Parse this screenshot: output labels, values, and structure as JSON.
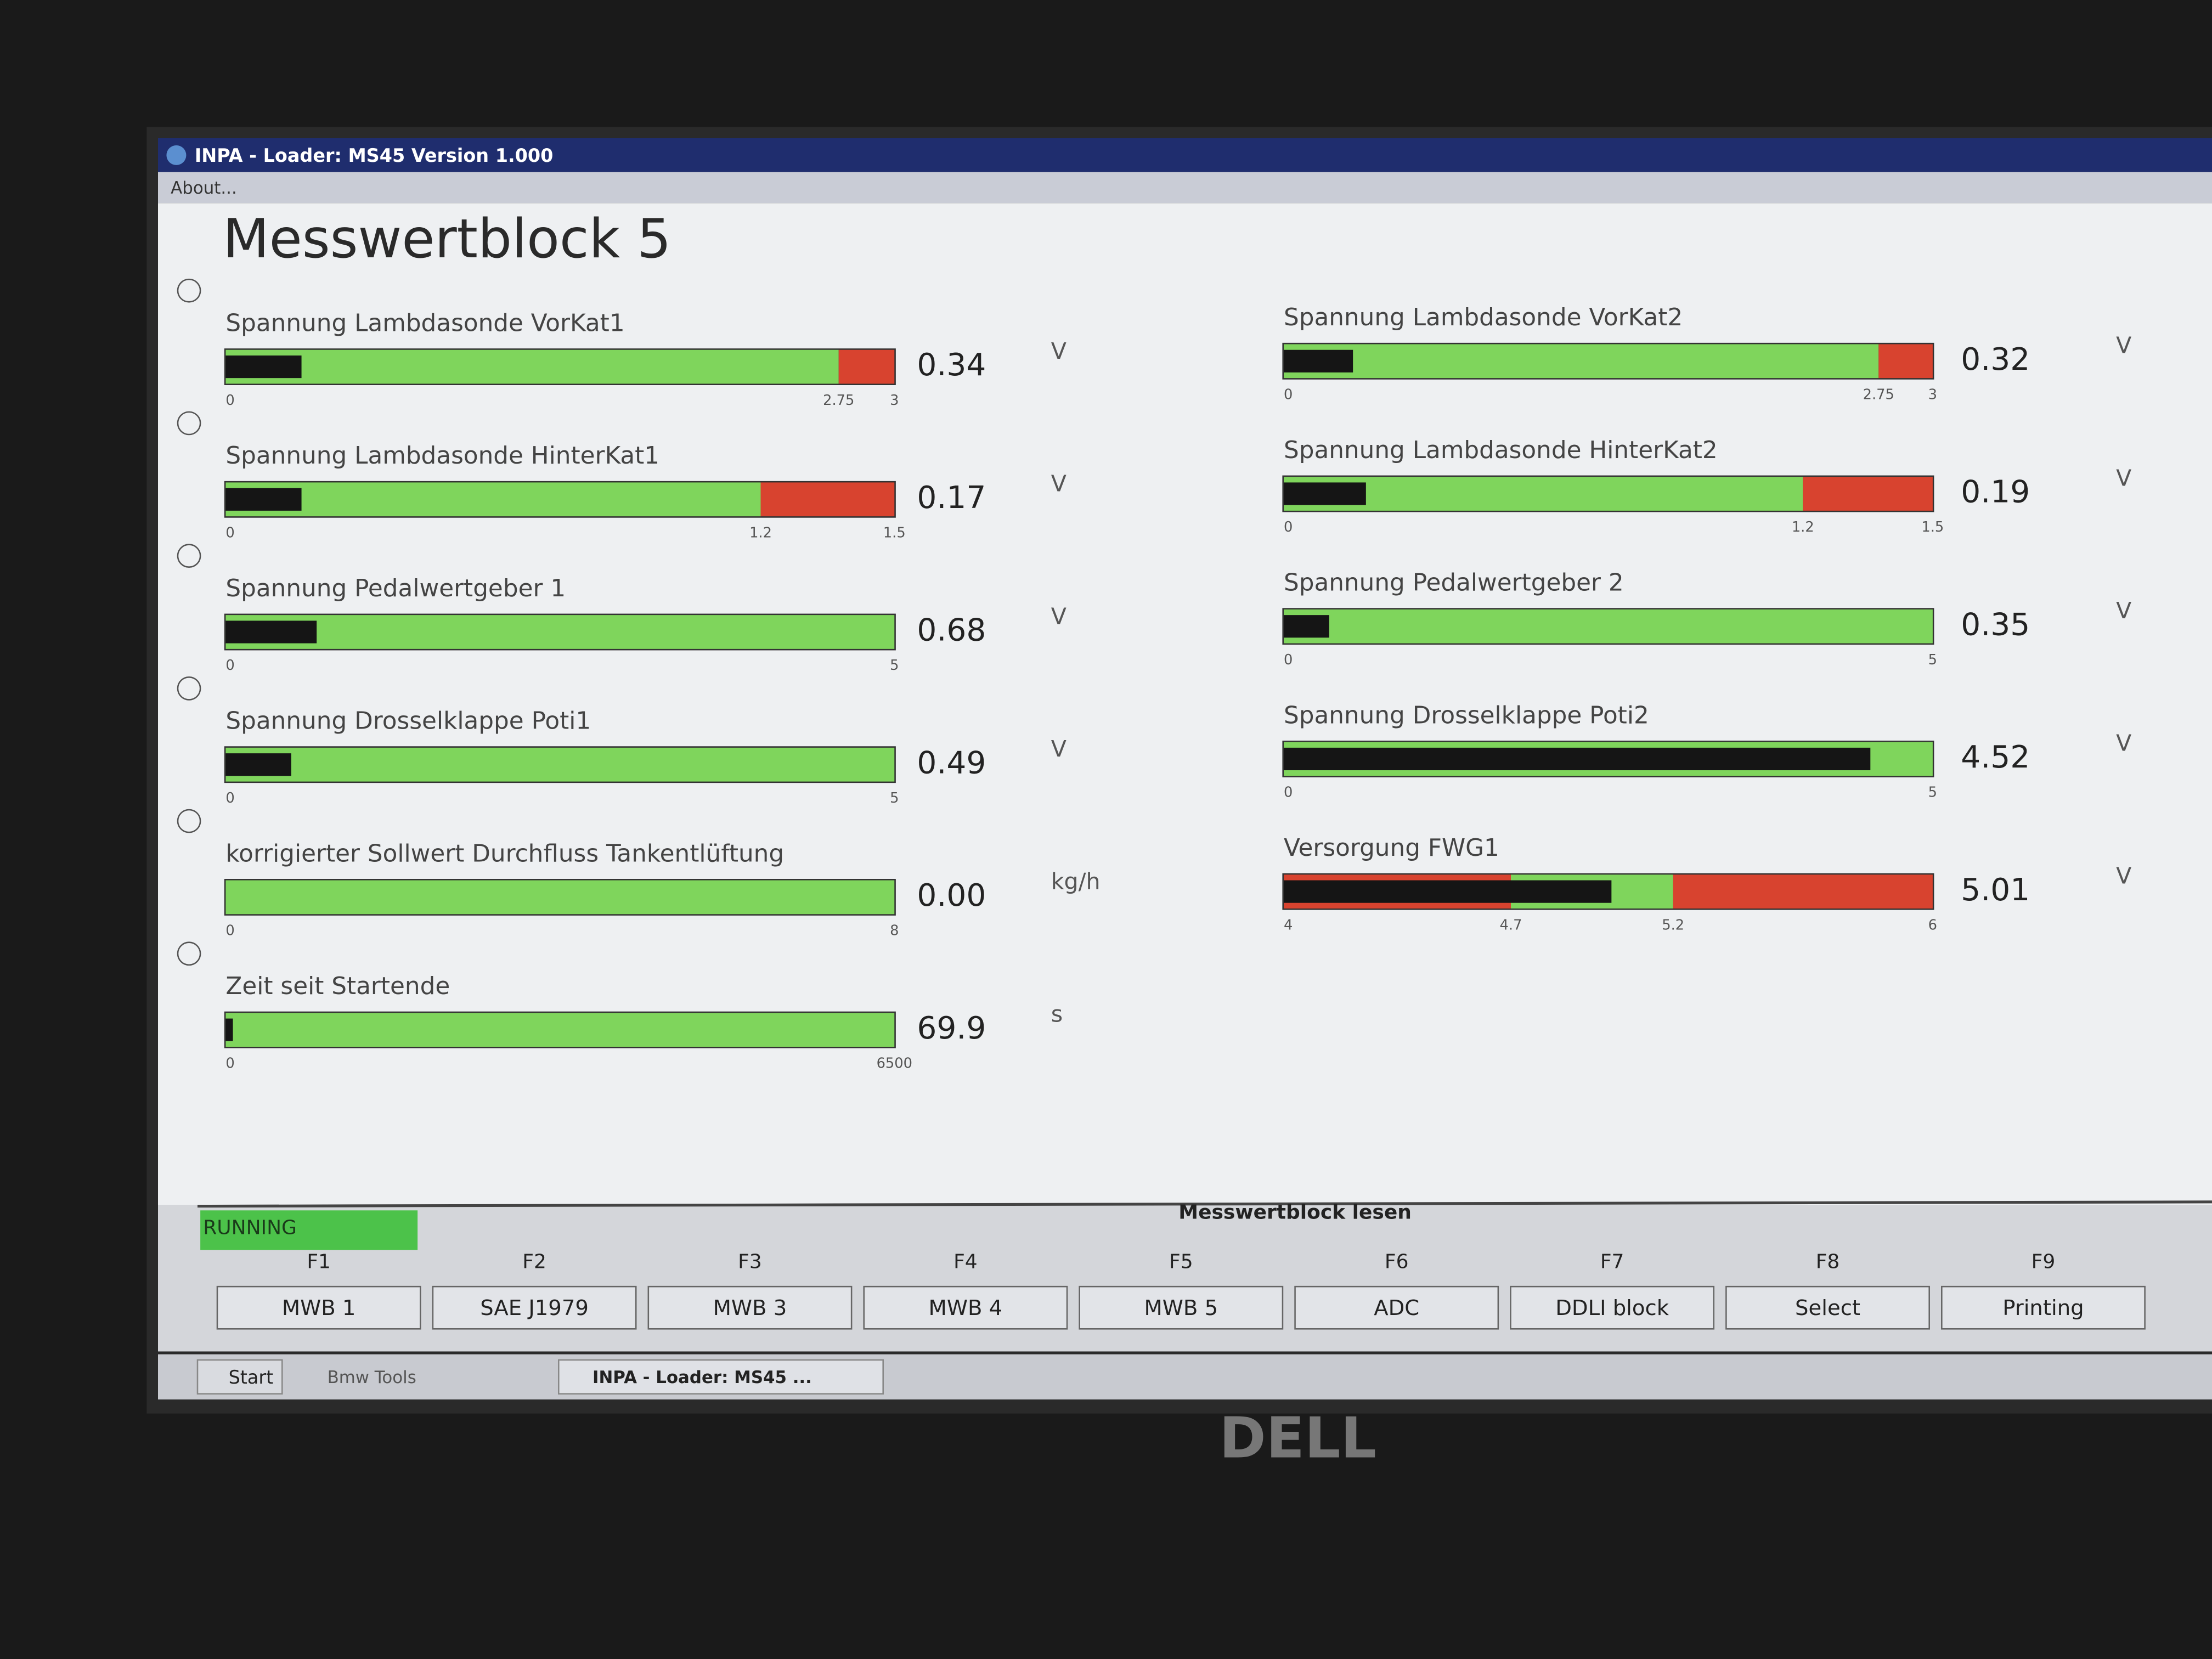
{
  "window": {
    "title": "INPA - Loader: MS45 Version 1.000",
    "menu": "About..."
  },
  "heading": "Messwertblock 5",
  "columns": [
    [
      {
        "label": "Spannung Lambdasonde VorKat1",
        "value": 0.34,
        "unit": "V",
        "ticks": [
          0,
          2.75,
          3
        ],
        "zones": [
          "#7fd55c",
          "#d8432f"
        ]
      },
      {
        "label": "Spannung Lambdasonde HinterKat1",
        "value": 0.17,
        "unit": "V",
        "ticks": [
          0,
          1.2,
          1.5
        ],
        "zones": [
          "#7fd55c",
          "#d8432f"
        ]
      },
      {
        "label": "Spannung Pedalwertgeber 1",
        "value": 0.68,
        "unit": "V",
        "ticks": [
          0,
          5
        ],
        "zones": [
          "#7fd55c"
        ]
      },
      {
        "label": "Spannung Drosselklappe Poti1",
        "value": 0.49,
        "unit": "V",
        "ticks": [
          0,
          5
        ],
        "zones": [
          "#7fd55c"
        ]
      },
      {
        "label": "korrigierter Sollwert Durchfluss Tankentlüftung",
        "value": 0,
        "value_label": "0.00",
        "unit": "kg/h",
        "ticks": [
          0,
          8
        ],
        "zones": [
          "#7fd55c"
        ]
      },
      {
        "label": "Zeit seit Startende",
        "value": 69.9,
        "unit": "s",
        "ticks": [
          0,
          6500
        ],
        "zones": [
          "#7fd55c"
        ]
      }
    ],
    [
      {
        "label": "Spannung Lambdasonde VorKat2",
        "value": 0.32,
        "unit": "V",
        "ticks": [
          0,
          2.75,
          3
        ],
        "zones": [
          "#7fd55c",
          "#d8432f"
        ]
      },
      {
        "label": "Spannung Lambdasonde HinterKat2",
        "value": 0.19,
        "unit": "V",
        "ticks": [
          0,
          1.2,
          1.5
        ],
        "zones": [
          "#7fd55c",
          "#d8432f"
        ]
      },
      {
        "label": "Spannung Pedalwertgeber 2",
        "value": 0.35,
        "unit": "V",
        "ticks": [
          0,
          5
        ],
        "zones": [
          "#7fd55c"
        ]
      },
      {
        "label": "Spannung Drosselklappe Poti2",
        "value": 4.52,
        "unit": "V",
        "ticks": [
          0,
          5
        ],
        "zones": [
          "#7fd55c"
        ]
      },
      {
        "label": "Versorgung FWG1",
        "value": 5.01,
        "unit": "V",
        "ticks": [
          4,
          4.7,
          5.2,
          6
        ],
        "zones": [
          "#d8432f",
          "#7fd55c",
          "#d8432f"
        ]
      }
    ]
  ],
  "status": "RUNNING",
  "action_title": "Messwertblock lesen",
  "function_keys": [
    {
      "key": "F1",
      "label": "MWB 1"
    },
    {
      "key": "F2",
      "label": "SAE J1979"
    },
    {
      "key": "F3",
      "label": "MWB 3"
    },
    {
      "key": "F4",
      "label": "MWB 4"
    },
    {
      "key": "F5",
      "label": "MWB 5"
    },
    {
      "key": "F6",
      "label": "ADC"
    },
    {
      "key": "F7",
      "label": "DDLI block"
    },
    {
      "key": "F8",
      "label": "Select"
    },
    {
      "key": "F9",
      "label": "Printing"
    }
  ],
  "taskbar": {
    "start": "Start",
    "items": [
      "Bmw Tools",
      "INPA - Loader: MS45 ..."
    ]
  },
  "brand": "DELL"
}
